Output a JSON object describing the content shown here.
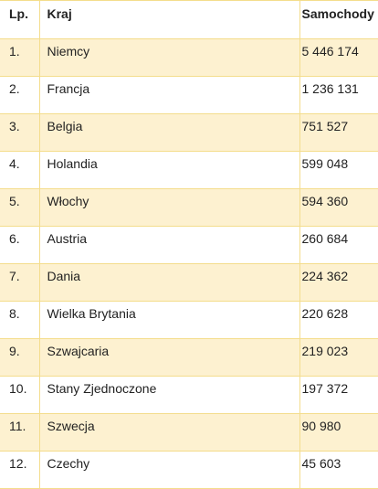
{
  "table": {
    "header": [
      "Lp.",
      "Kraj",
      "Samochody"
    ],
    "rows": [
      [
        "1.",
        "Niemcy",
        "5 446 174"
      ],
      [
        "2.",
        "Francja",
        "1 236 131"
      ],
      [
        "3.",
        "Belgia",
        "751 527"
      ],
      [
        "4.",
        "Holandia",
        "599 048"
      ],
      [
        "5.",
        "Włochy",
        "594 360"
      ],
      [
        "6.",
        "Austria",
        "260 684"
      ],
      [
        "7.",
        "Dania",
        "224 362"
      ],
      [
        "8.",
        "Wielka Brytania",
        "220 628"
      ],
      [
        "9.",
        "Szwajcaria",
        "219 023"
      ],
      [
        "10.",
        "Stany Zjednoczone",
        "197 372"
      ],
      [
        "11.",
        "Szwecja",
        "90 980"
      ],
      [
        "12.",
        "Czechy",
        "45 603"
      ]
    ]
  }
}
